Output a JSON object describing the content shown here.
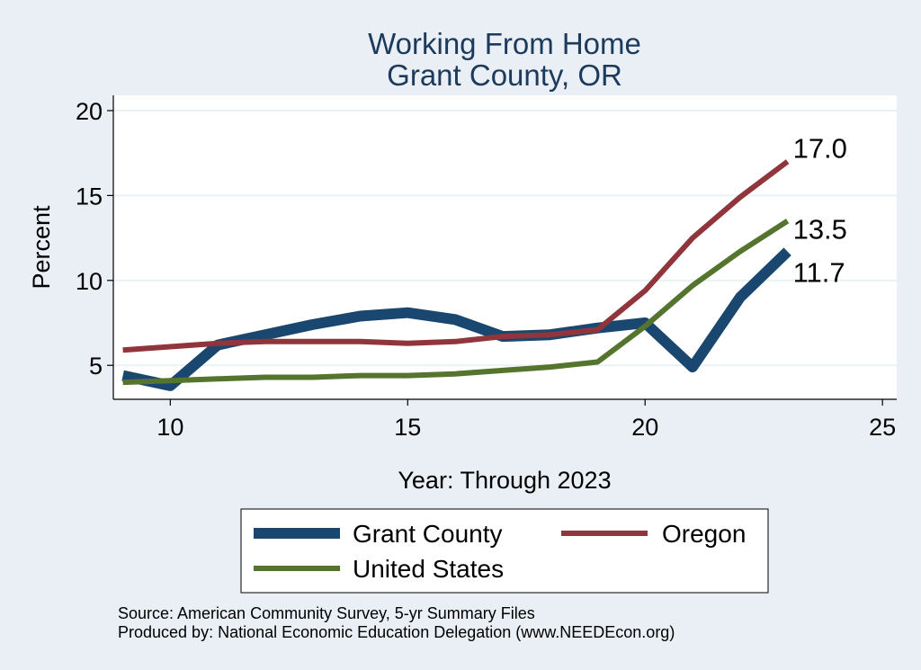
{
  "chart_data": {
    "type": "line",
    "title": [
      "Working From Home",
      "Grant County, OR"
    ],
    "xlabel": "Year: Through 2023",
    "ylabel": "Percent",
    "xlim": [
      8.8,
      25.3
    ],
    "ylim": [
      3.0,
      20.9
    ],
    "xticks": [
      10,
      15,
      20,
      25
    ],
    "yticks": [
      5,
      10,
      15,
      20
    ],
    "grid": true,
    "legend_position": "bottom",
    "series": [
      {
        "name": "Grant County",
        "color": "#1a476f",
        "width": 12,
        "x": [
          9,
          10,
          11,
          12,
          13,
          14,
          15,
          16,
          17,
          18,
          19,
          20,
          21,
          22,
          23
        ],
        "y": [
          4.4,
          3.8,
          6.2,
          6.8,
          7.4,
          7.9,
          8.1,
          7.7,
          6.7,
          6.8,
          7.2,
          7.5,
          4.9,
          9.0,
          11.7
        ],
        "end_label": "11.7"
      },
      {
        "name": "Oregon",
        "color": "#90353b",
        "width": 6,
        "x": [
          9,
          10,
          11,
          12,
          13,
          14,
          15,
          16,
          17,
          18,
          19,
          20,
          21,
          22,
          23
        ],
        "y": [
          5.9,
          6.1,
          6.3,
          6.4,
          6.4,
          6.4,
          6.3,
          6.4,
          6.7,
          6.8,
          7.1,
          9.4,
          12.5,
          14.9,
          17.0
        ],
        "end_label": "17.0"
      },
      {
        "name": "United States",
        "color": "#55752f",
        "width": 6,
        "x": [
          9,
          10,
          11,
          12,
          13,
          14,
          15,
          16,
          17,
          18,
          19,
          20,
          21,
          22,
          23
        ],
        "y": [
          4.0,
          4.1,
          4.2,
          4.3,
          4.3,
          4.4,
          4.4,
          4.5,
          4.7,
          4.9,
          5.2,
          7.3,
          9.7,
          11.7,
          13.5
        ],
        "end_label": "13.5"
      }
    ]
  },
  "footer": {
    "source": "Source: American Community Survey, 5-yr Summary Files",
    "produced": "Produced by: National Economic Education Delegation (www.NEEDEcon.org)"
  }
}
